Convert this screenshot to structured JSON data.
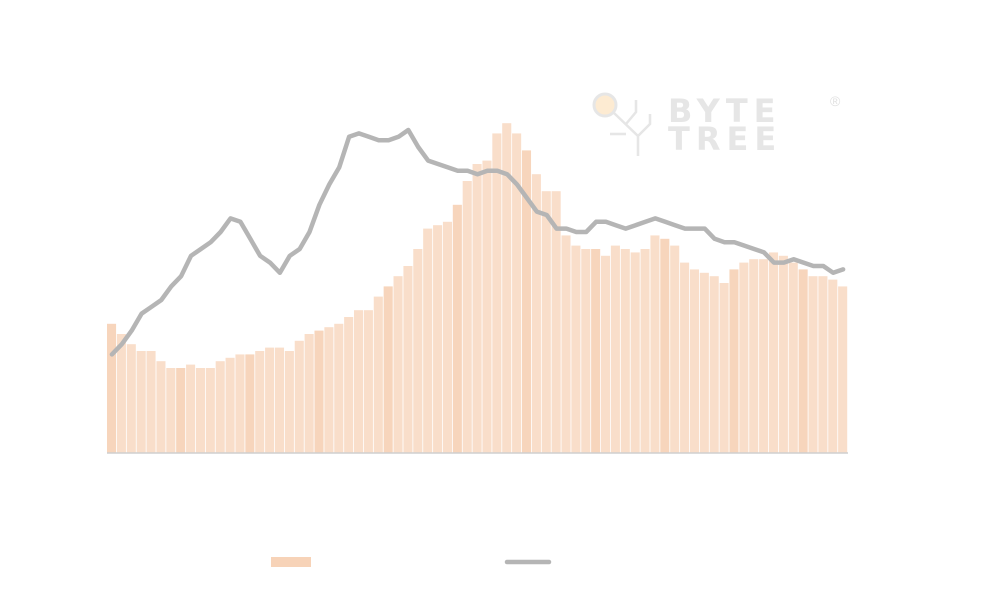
{
  "watermark": {
    "line1": "BYTE",
    "line2": "TREE",
    "mark": "®"
  },
  "chart_data": {
    "type": "bar_line",
    "ylim": [
      0,
      100
    ],
    "series": [
      {
        "type": "bar",
        "color": "#f7d3b8",
        "values": [
          38,
          35,
          32,
          30,
          30,
          27,
          25,
          25,
          26,
          25,
          25,
          27,
          28,
          29,
          29,
          30,
          31,
          31,
          30,
          33,
          35,
          36,
          37,
          38,
          40,
          42,
          42,
          46,
          49,
          52,
          55,
          60,
          66,
          67,
          68,
          73,
          80,
          85,
          86,
          94,
          97,
          94,
          89,
          82,
          77,
          77,
          64,
          61,
          60,
          60,
          58,
          61,
          60,
          59,
          60,
          64,
          63,
          61,
          56,
          54,
          53,
          52,
          50,
          54,
          56,
          57,
          57,
          59,
          58,
          56,
          54,
          52,
          52,
          51,
          49
        ]
      },
      {
        "type": "line",
        "color": "#b5b5b5",
        "values": [
          29,
          32,
          36,
          41,
          43,
          45,
          49,
          52,
          58,
          60,
          62,
          65,
          69,
          68,
          63,
          58,
          56,
          53,
          58,
          60,
          65,
          73,
          79,
          84,
          93,
          94,
          93,
          92,
          92,
          93,
          95,
          90,
          86,
          85,
          84,
          83,
          83,
          82,
          83,
          83,
          82,
          79,
          75,
          71,
          70,
          66,
          66,
          65,
          65,
          68,
          68,
          67,
          66,
          67,
          68,
          69,
          68,
          67,
          66,
          66,
          66,
          63,
          62,
          62,
          61,
          60,
          59,
          56,
          56,
          57,
          56,
          55,
          55,
          53,
          54
        ]
      }
    ]
  }
}
